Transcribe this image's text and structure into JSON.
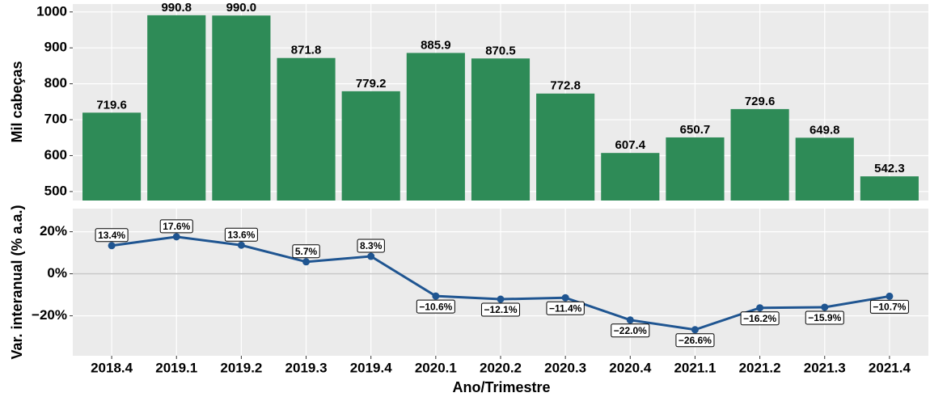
{
  "chart_data": [
    {
      "type": "bar",
      "y_label": "Mil cabeças",
      "x_label": "Ano/Trimestre",
      "categories": [
        "2018.4",
        "2019.1",
        "2019.2",
        "2019.3",
        "2019.4",
        "2020.1",
        "2020.2",
        "2020.3",
        "2020.4",
        "2021.1",
        "2021.2",
        "2021.3",
        "2021.4"
      ],
      "values": [
        719.6,
        990.8,
        990.0,
        871.8,
        779.2,
        885.9,
        870.5,
        772.8,
        607.4,
        650.7,
        729.6,
        649.8,
        542.3
      ],
      "value_labels": [
        "719.6",
        "990.8",
        "990.0",
        "871.8",
        "779.2",
        "885.9",
        "870.5",
        "772.8",
        "607.4",
        "650.7",
        "729.6",
        "649.8",
        "542.3"
      ],
      "color": "#2e8b57",
      "ylim": [
        475,
        1022
      ],
      "yticks": [
        500,
        600,
        700,
        800,
        900,
        1000
      ],
      "grid": true
    },
    {
      "type": "line",
      "y_label": "Var. interanual (% a.a.)",
      "values": [
        13.4,
        17.6,
        13.6,
        5.7,
        8.3,
        -10.6,
        -12.1,
        -11.4,
        -22.0,
        -26.6,
        -16.2,
        -15.9,
        -10.7
      ],
      "value_labels": [
        "13.4%",
        "17.6%",
        "13.6%",
        "5.7%",
        "8.3%",
        "−10.6%",
        "−12.1%",
        "−11.4%",
        "−22.0%",
        "−26.6%",
        "−16.2%",
        "−15.9%",
        "−10.7%"
      ],
      "color": "#1f5591",
      "ylim": [
        -39,
        31
      ],
      "yticks": [
        {
          "value": 20,
          "label": "20%"
        },
        {
          "value": 0,
          "label": "0%"
        },
        {
          "value": -20,
          "label": "−20%"
        }
      ],
      "grid": true
    }
  ]
}
